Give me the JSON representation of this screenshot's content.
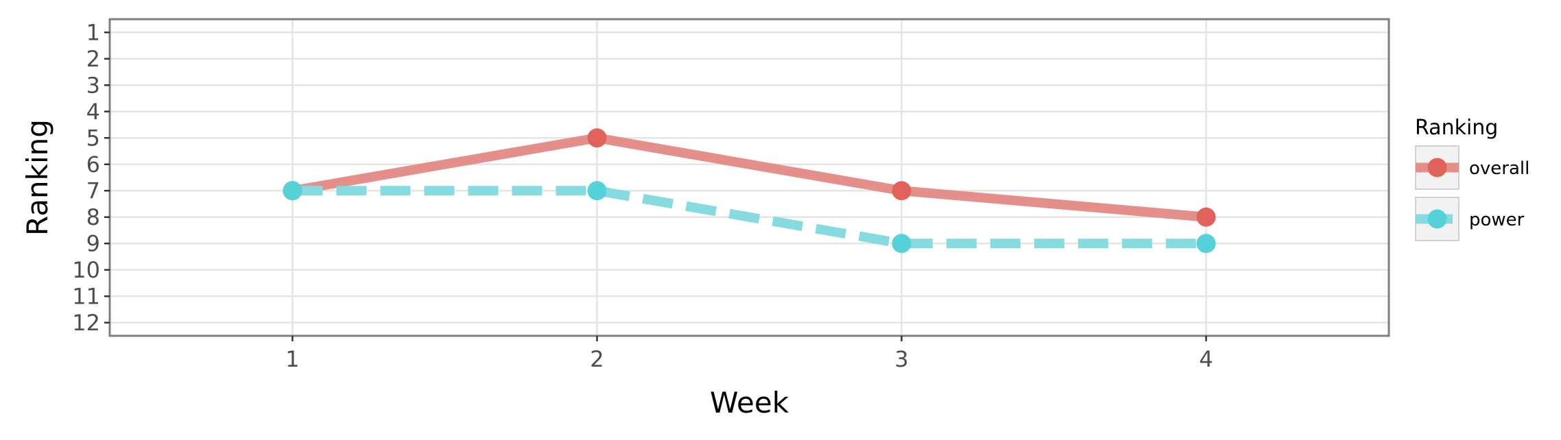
{
  "chart_data": {
    "type": "line",
    "xlabel": "Week",
    "ylabel": "Ranking",
    "x": [
      1,
      2,
      3,
      4
    ],
    "x_ticks": [
      "1",
      "2",
      "3",
      "4"
    ],
    "xlim": [
      0.4,
      4.6
    ],
    "y_ticks": [
      "1",
      "2",
      "3",
      "4",
      "5",
      "6",
      "7",
      "8",
      "9",
      "10",
      "11",
      "12"
    ],
    "ylim": [
      0.5,
      12.5
    ],
    "y_reversed": true,
    "grid": true,
    "legend": {
      "title": "Ranking",
      "position": "right"
    },
    "series": [
      {
        "name": "overall",
        "values": [
          7,
          5,
          7,
          8
        ],
        "line_color": "#e58f8a",
        "point_color": "#e0625a",
        "line_style": "solid"
      },
      {
        "name": "power",
        "values": [
          7,
          7,
          9,
          9
        ],
        "line_color": "#86dbe1",
        "point_color": "#55d1da",
        "line_style": "dashed"
      }
    ]
  }
}
